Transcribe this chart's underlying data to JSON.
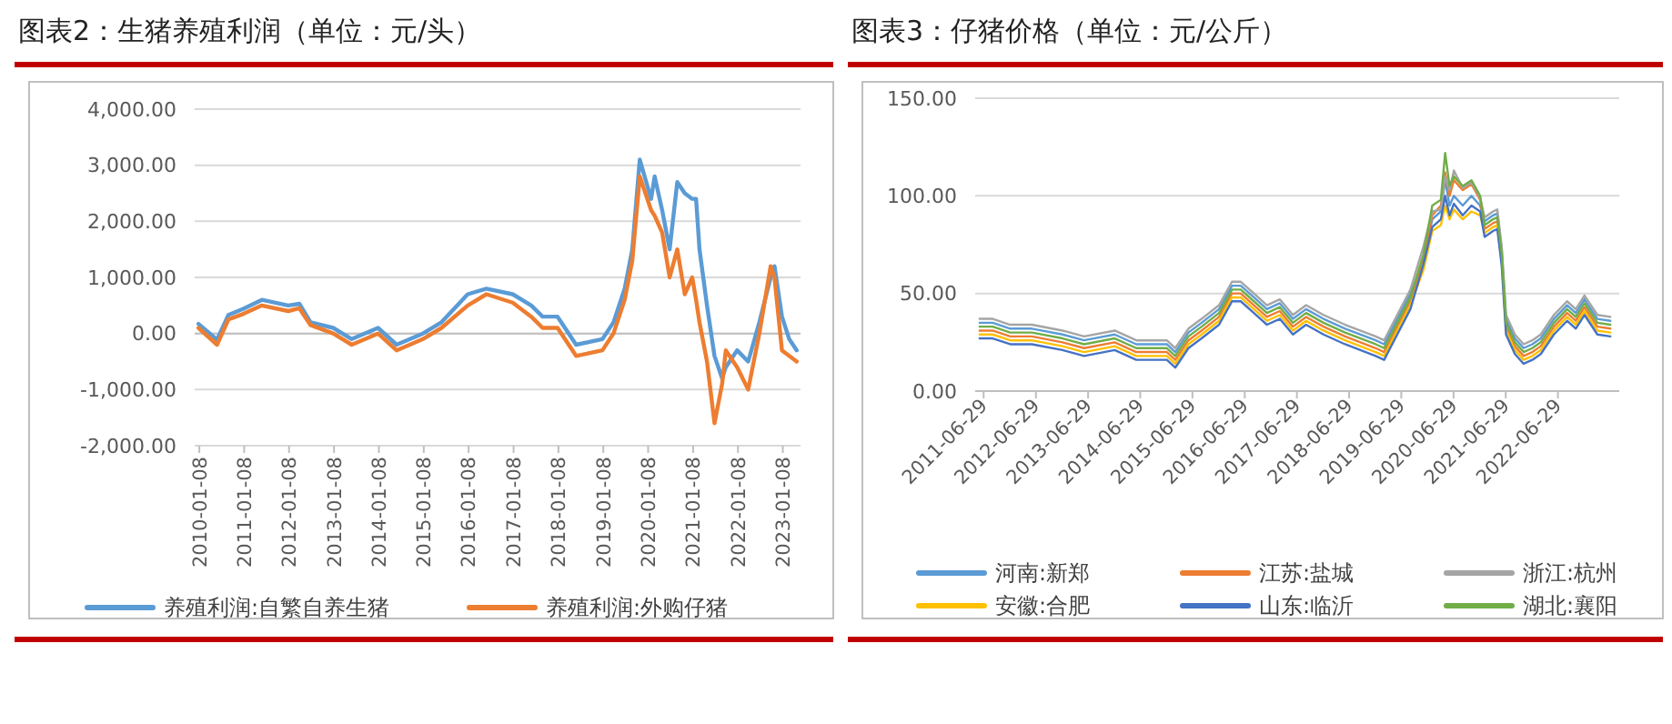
{
  "chart_data": [
    {
      "type": "line",
      "title": "图表2：生猪养殖利润（单位：元/头）",
      "x": [
        "2010-01",
        "2010-06",
        "2010-09",
        "2011-01",
        "2011-06",
        "2012-01",
        "2012-04",
        "2012-07",
        "2013-01",
        "2013-06",
        "2014-01",
        "2014-06",
        "2015-01",
        "2015-06",
        "2016-01",
        "2016-06",
        "2017-01",
        "2017-06",
        "2017-09",
        "2018-01",
        "2018-06",
        "2019-01",
        "2019-04",
        "2019-07",
        "2019-09",
        "2019-11",
        "2020-02",
        "2020-03",
        "2020-05",
        "2020-07",
        "2020-09",
        "2020-11",
        "2021-01",
        "2021-02",
        "2021-03",
        "2021-05",
        "2021-07",
        "2021-09",
        "2021-10",
        "2022-01",
        "2022-04",
        "2022-07",
        "2022-10",
        "2022-11",
        "2023-01",
        "2023-03",
        "2023-05"
      ],
      "series": [
        {
          "name": "养殖利润:自繁自养生猪",
          "color": "#5b9bd5",
          "values": [
            170,
            -110,
            330,
            440,
            600,
            500,
            530,
            200,
            100,
            -100,
            100,
            -200,
            0,
            200,
            700,
            800,
            700,
            500,
            300,
            300,
            -200,
            -100,
            200,
            800,
            1500,
            3100,
            2400,
            2800,
            2200,
            1500,
            2700,
            2500,
            2400,
            2400,
            1500,
            500,
            -400,
            -800,
            -600,
            -300,
            -500,
            200,
            1000,
            1200,
            300,
            -100,
            -300
          ]
        },
        {
          "name": "养殖利润:外购仔猪",
          "color": "#ed7d31",
          "values": [
            100,
            -200,
            250,
            350,
            500,
            400,
            450,
            150,
            0,
            -200,
            0,
            -300,
            -100,
            100,
            500,
            700,
            550,
            300,
            100,
            100,
            -400,
            -300,
            0,
            600,
            1300,
            2800,
            2200,
            2100,
            1800,
            1000,
            1500,
            700,
            1000,
            600,
            200,
            -500,
            -1600,
            -900,
            -300,
            -600,
            -1000,
            0,
            1200,
            1000,
            -300,
            -400,
            -500
          ]
        }
      ],
      "xlim": [
        "2009-12",
        "2023-06"
      ],
      "xticks": [
        "2010-01-08",
        "2011-01-08",
        "2012-01-08",
        "2013-01-08",
        "2014-01-08",
        "2015-01-08",
        "2016-01-08",
        "2017-01-08",
        "2018-01-08",
        "2019-01-08",
        "2020-01-08",
        "2021-01-08",
        "2022-01-08",
        "2023-01-08"
      ],
      "ylim": [
        -2000,
        4000
      ],
      "yticks": [
        {
          "value": -2000,
          "label": "-2,000.00"
        },
        {
          "value": -1000,
          "label": "-1,000.00"
        },
        {
          "value": 0,
          "label": "0.00"
        },
        {
          "value": 1000,
          "label": "1,000.00"
        },
        {
          "value": 2000,
          "label": "2,000.00"
        },
        {
          "value": 3000,
          "label": "3,000.00"
        },
        {
          "value": 4000,
          "label": "4,000.00"
        }
      ],
      "grid": "y",
      "legend": "bottom"
    },
    {
      "type": "line",
      "title": "图表3：仔猪价格（单位：元/公斤）",
      "x": [
        "2011-06",
        "2011-09",
        "2012-01",
        "2012-06",
        "2013-01",
        "2013-06",
        "2014-01",
        "2014-06",
        "2015-01",
        "2015-03",
        "2015-06",
        "2015-09",
        "2016-01",
        "2016-04",
        "2016-06",
        "2016-09",
        "2016-12",
        "2017-03",
        "2017-06",
        "2017-09",
        "2018-01",
        "2018-06",
        "2019-01",
        "2019-03",
        "2019-06",
        "2019-09",
        "2019-12",
        "2020-02",
        "2020-04",
        "2020-05",
        "2020-06",
        "2020-07",
        "2020-09",
        "2020-11",
        "2021-01",
        "2021-02",
        "2021-04",
        "2021-05",
        "2021-06",
        "2021-07",
        "2021-09",
        "2021-11",
        "2022-01",
        "2022-03",
        "2022-06",
        "2022-09",
        "2022-11",
        "2023-01",
        "2023-04",
        "2023-07"
      ],
      "series": [
        {
          "name": "河南:新郑",
          "color": "#5b9bd5",
          "values": [
            35,
            35,
            32,
            32,
            29,
            26,
            29,
            24,
            24,
            20,
            30,
            35,
            42,
            54,
            54,
            48,
            42,
            45,
            37,
            42,
            37,
            32,
            26,
            24,
            37,
            50,
            66,
            88,
            92,
            108,
            95,
            100,
            95,
            100,
            95,
            87,
            90,
            91,
            72,
            37,
            27,
            22,
            24,
            27,
            37,
            44,
            40,
            47,
            37,
            36
          ]
        },
        {
          "name": "江苏:盐城",
          "color": "#ed7d31",
          "values": [
            31,
            31,
            28,
            28,
            25,
            22,
            25,
            20,
            20,
            16,
            26,
            31,
            38,
            50,
            50,
            44,
            38,
            41,
            33,
            38,
            33,
            28,
            22,
            20,
            33,
            46,
            68,
            90,
            95,
            112,
            100,
            108,
            103,
            106,
            98,
            83,
            86,
            87,
            68,
            33,
            23,
            18,
            20,
            23,
            33,
            40,
            36,
            43,
            33,
            32
          ]
        },
        {
          "name": "浙江:杭州",
          "color": "#a5a5a5",
          "values": [
            37,
            37,
            34,
            34,
            31,
            28,
            31,
            26,
            26,
            22,
            32,
            37,
            44,
            56,
            56,
            50,
            44,
            47,
            39,
            44,
            39,
            34,
            28,
            26,
            39,
            52,
            74,
            92,
            93,
            110,
            103,
            113,
            104,
            107,
            99,
            89,
            92,
            93,
            74,
            39,
            29,
            24,
            26,
            29,
            39,
            46,
            42,
            49,
            39,
            38
          ]
        },
        {
          "name": "安徽:合肥",
          "color": "#ffc000",
          "values": [
            29,
            29,
            26,
            26,
            23,
            20,
            23,
            18,
            18,
            14,
            24,
            29,
            36,
            48,
            48,
            42,
            36,
            39,
            31,
            36,
            31,
            26,
            20,
            18,
            31,
            44,
            62,
            82,
            85,
            95,
            88,
            93,
            88,
            92,
            90,
            81,
            84,
            85,
            66,
            31,
            21,
            16,
            18,
            21,
            31,
            38,
            34,
            41,
            31,
            30
          ]
        },
        {
          "name": "山东:临沂",
          "color": "#4472c4",
          "values": [
            27,
            27,
            24,
            24,
            21,
            18,
            21,
            16,
            16,
            12,
            22,
            27,
            34,
            46,
            46,
            40,
            34,
            37,
            29,
            34,
            29,
            24,
            18,
            16,
            29,
            42,
            65,
            84,
            88,
            100,
            90,
            96,
            90,
            95,
            92,
            79,
            82,
            83,
            64,
            29,
            19,
            14,
            16,
            19,
            29,
            36,
            32,
            39,
            29,
            28
          ]
        },
        {
          "name": "湖北:襄阳",
          "color": "#70ad47",
          "values": [
            33,
            33,
            30,
            30,
            27,
            24,
            27,
            22,
            22,
            18,
            28,
            33,
            40,
            52,
            52,
            46,
            40,
            43,
            35,
            40,
            35,
            30,
            24,
            22,
            35,
            48,
            70,
            95,
            98,
            122,
            105,
            110,
            105,
            108,
            100,
            85,
            88,
            89,
            70,
            35,
            25,
            20,
            22,
            25,
            35,
            42,
            38,
            45,
            35,
            34
          ]
        }
      ],
      "xlim": [
        "2011-05",
        "2023-09"
      ],
      "xticks": [
        "2011-06-29",
        "2012-06-29",
        "2013-06-29",
        "2014-06-29",
        "2015-06-29",
        "2016-06-29",
        "2017-06-29",
        "2018-06-29",
        "2019-06-29",
        "2020-06-29",
        "2021-06-29",
        "2022-06-29"
      ],
      "ylim": [
        0,
        150
      ],
      "yticks": [
        {
          "value": 0,
          "label": "0.00"
        },
        {
          "value": 50,
          "label": "50.00"
        },
        {
          "value": 100,
          "label": "100.00"
        },
        {
          "value": 150,
          "label": "150.00"
        }
      ],
      "grid": "y",
      "legend": "bottom"
    }
  ]
}
